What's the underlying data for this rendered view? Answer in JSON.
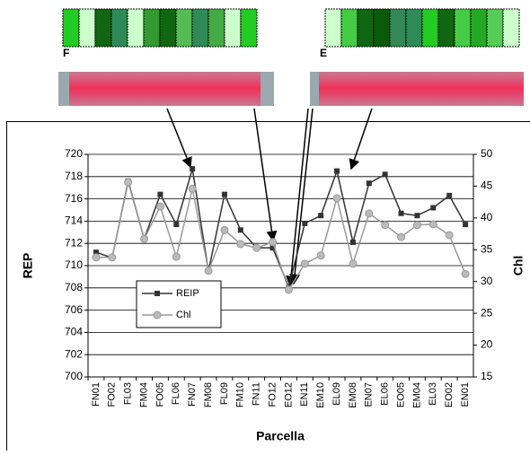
{
  "chart_data": {
    "type": "line",
    "annotations": [
      "F",
      "E"
    ],
    "categories": [
      "FN01",
      "FO02",
      "FL03",
      "FM04",
      "FO05",
      "FL06",
      "FN07",
      "FM08",
      "FL09",
      "FM10",
      "FN11",
      "FO12",
      "EO12",
      "EN11",
      "EM10",
      "EL09",
      "EM08",
      "EN07",
      "EL06",
      "EO05",
      "EM04",
      "EL03",
      "EO02",
      "EN01"
    ],
    "series": [
      {
        "name": "REIP",
        "color": "#333333",
        "marker": "square",
        "values": [
          711.2,
          710.7,
          717.6,
          712.4,
          716.4,
          713.7,
          718.7,
          709.5,
          716.4,
          713.2,
          711.6,
          711.6,
          708.1,
          713.8,
          714.5,
          718.5,
          712.1,
          717.4,
          718.2,
          714.7,
          714.5,
          715.2,
          716.3,
          713.7
        ]
      },
      {
        "name": "Chl",
        "color": "#999999",
        "marker": "circle",
        "axis": "y2",
        "values": [
          33.8,
          33.8,
          45.6,
          36.7,
          41.8,
          33.9,
          44.6,
          31.7,
          38.1,
          35.9,
          35.3,
          36.2,
          28.7,
          32.8,
          34.1,
          43.1,
          32.8,
          40.7,
          38.9,
          37.0,
          38.9,
          39.0,
          37.3,
          31.2
        ]
      }
    ],
    "ylabel": "REP",
    "y2label": "Chl",
    "xlabel": "Parcella",
    "ylim": [
      700,
      720
    ],
    "yticks": [
      700,
      702,
      704,
      706,
      708,
      710,
      712,
      714,
      716,
      718,
      720
    ],
    "y2lim": [
      15,
      50
    ],
    "y2ticks": [
      15,
      20,
      25,
      30,
      35,
      40,
      45,
      50
    ],
    "grid": true
  }
}
